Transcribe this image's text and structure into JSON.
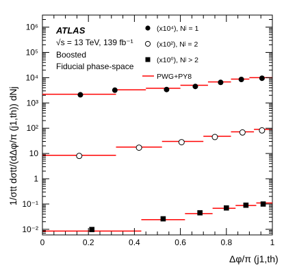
{
  "chart_data": {
    "type": "scatter",
    "title": "",
    "xlabel": "Δφ/π (j1,th)",
    "ylabel": "1/σtt dσtt/(dΔφ/π (j1,th)) dNj",
    "xlim": [
      0,
      1
    ],
    "ylim": [
      0.006,
      3000000
    ],
    "y_scale": "log",
    "x_ticks": [
      "0",
      "0.2",
      "0.4",
      "0.6",
      "0.8",
      "1"
    ],
    "y_ticks": [
      "10⁻²",
      "10⁻¹",
      "1",
      "10",
      "10²",
      "10³",
      "10⁴",
      "10⁵",
      "10⁶"
    ],
    "annotations": {
      "experiment": "ATLAS",
      "energy": "√s = 13 TeV, 139 fb⁻¹",
      "selection": "Boosted",
      "phase_space": "Fiducial phase-space"
    },
    "legend_position": "top-right",
    "series": [
      {
        "name": "(x10⁴), Nʲ = 1",
        "marker": "filled-circle",
        "points_x": [
          0.165,
          0.315,
          0.54,
          0.665,
          0.775,
          0.865,
          0.955
        ],
        "points_y": [
          2100,
          3200,
          3400,
          4500,
          6500,
          8500,
          9500
        ],
        "mc_edges": [
          0,
          0.32,
          0.45,
          0.6,
          0.72,
          0.82,
          0.9,
          1.0
        ],
        "mc_values": [
          2200,
          3300,
          3800,
          5000,
          6800,
          8800,
          10000
        ]
      },
      {
        "name": "(x10²), Nʲ = 2",
        "marker": "open-circle",
        "points_x": [
          0.16,
          0.42,
          0.605,
          0.75,
          0.87,
          0.955
        ],
        "points_y": [
          8,
          17,
          28,
          45,
          68,
          82
        ],
        "mc_edges": [
          0,
          0.32,
          0.52,
          0.7,
          0.82,
          0.92,
          1.0
        ],
        "mc_values": [
          8.5,
          18,
          30,
          48,
          72,
          90
        ]
      },
      {
        "name": "(x10⁰), Nʲ > 2",
        "marker": "filled-square",
        "points_x": [
          0.215,
          0.525,
          0.685,
          0.8,
          0.885,
          0.96
        ],
        "points_y": [
          0.0098,
          0.026,
          0.045,
          0.07,
          0.09,
          0.1
        ],
        "mc_edges": [
          0,
          0.43,
          0.62,
          0.74,
          0.84,
          0.93,
          1.0
        ],
        "mc_values": [
          0.0085,
          0.024,
          0.042,
          0.068,
          0.088,
          0.11
        ]
      }
    ],
    "model": {
      "name": "PWG+PY8",
      "color": "#ff0000"
    }
  }
}
